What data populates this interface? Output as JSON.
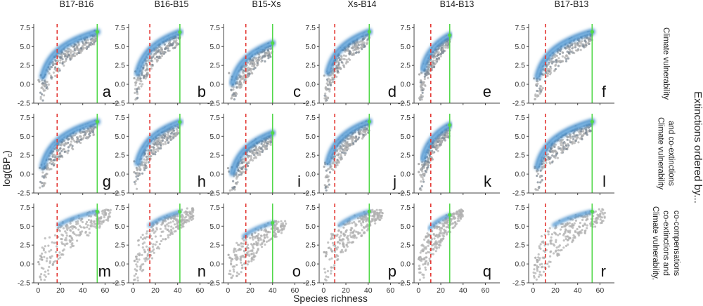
{
  "chart_data": {
    "type": "scatter",
    "xlabel": "Species richness",
    "ylabel": "log(BP",
    "ylabel_sub": "c",
    "ylabel_close": ")",
    "ylim": [
      -2.5,
      8.0
    ],
    "yticks": [
      "-2.5",
      "0.0",
      "2.5",
      "5.0",
      "7.5"
    ],
    "ytick_values": [
      -2.5,
      0.0,
      2.5,
      5.0,
      7.5
    ],
    "xlim": [
      -4,
      73
    ],
    "xticks": [
      "0",
      "20",
      "40",
      "60"
    ],
    "xtick_values": [
      0,
      20,
      40,
      60
    ],
    "right_title": "Extinctions ordered by...",
    "columns": [
      {
        "title": "B17-B16",
        "max_richness": 53,
        "red_line": 17
      },
      {
        "title": "B16-B15",
        "max_richness": 42,
        "red_line": 15
      },
      {
        "title": "B15-Xs",
        "max_richness": 40,
        "red_line": 16
      },
      {
        "title": "Xs-B14",
        "max_richness": 41,
        "red_line": 10
      },
      {
        "title": "B14-B13",
        "max_richness": 28,
        "red_line": 11
      },
      {
        "title": "B17-B13",
        "max_richness": 53,
        "red_line": 11
      }
    ],
    "rows": [
      {
        "label_lines": [
          "Climate vulnerability"
        ],
        "letters": [
          "a",
          "b",
          "c",
          "d",
          "e",
          "f"
        ]
      },
      {
        "label_lines": [
          "Climate vulnerability",
          "and co-extinctions"
        ],
        "letters": [
          "g",
          "h",
          "i",
          "j",
          "k",
          "l"
        ]
      },
      {
        "label_lines": [
          "Climate vulnerability,",
          "co-extinctions and",
          "co-compensations"
        ],
        "letters": [
          "m",
          "n",
          "o",
          "p",
          "q",
          "r"
        ]
      }
    ],
    "curve_end_logBP": [
      6.95,
      6.9,
      5.45,
      6.95,
      6.5,
      6.95
    ],
    "colors": {
      "point_gray": "#b0b0b0",
      "point_dark": "#7e8a96",
      "density_blue": "#2f7ec2",
      "density_light": "#8ec2ea",
      "green_line": "#52d84a",
      "red_dash": "#e3342f",
      "axis": "#444444"
    }
  }
}
